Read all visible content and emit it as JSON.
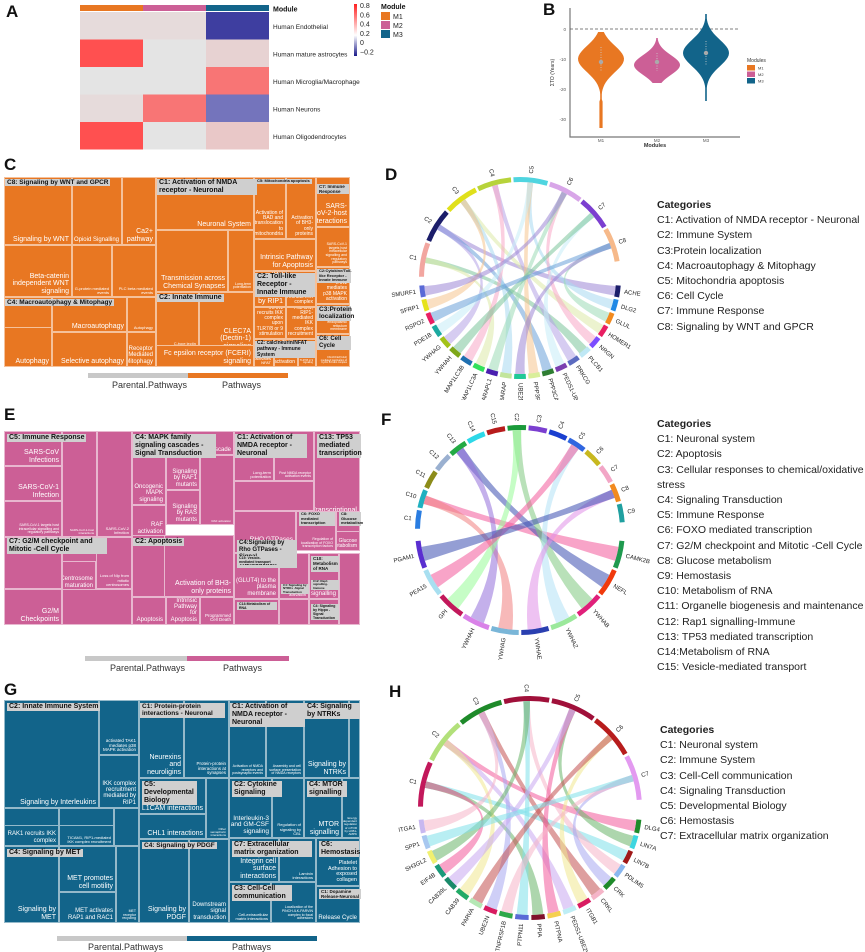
{
  "panels": {
    "A": {
      "label": "A"
    },
    "B": {
      "label": "B"
    },
    "C": {
      "label": "C"
    },
    "D": {
      "label": "D"
    },
    "E": {
      "label": "E"
    },
    "F": {
      "label": "F"
    },
    "G": {
      "label": "G"
    },
    "H": {
      "label": "H"
    }
  },
  "colors": {
    "M1": "#e87722",
    "M2": "#cc5f96",
    "M3": "#12648a",
    "parental": "#c8c8c8"
  },
  "chart_data": [
    {
      "panel": "A",
      "type": "heatmap",
      "columns": [
        "M1",
        "M2",
        "M3"
      ],
      "column_annotation_title": "Module",
      "rows": [
        "Human Endothelial",
        "Human mature astrocytes",
        "Human Microglia/Macrophage",
        "Human Neurons",
        "Human Oligodendrocytes"
      ],
      "values": [
        [
          0.05,
          0.05,
          -0.2
        ],
        [
          0.8,
          0.0,
          0.1
        ],
        [
          0.0,
          0.0,
          0.6
        ],
        [
          0.05,
          0.6,
          -0.1
        ],
        [
          0.8,
          0.0,
          0.15
        ]
      ],
      "colorbar": {
        "ticks": [
          "0.8",
          "0.6",
          "0.4",
          "0.2",
          "0",
          "−0.2"
        ],
        "range": [
          -0.2,
          0.8
        ]
      },
      "legend": {
        "title": "Module",
        "items": [
          "M1",
          "M2",
          "M3"
        ]
      }
    },
    {
      "panel": "B",
      "type": "violin",
      "xlabel": "Modules",
      "ylabel": "ΣΤΟ (Years)",
      "categories": [
        "M1",
        "M2",
        "M3"
      ],
      "yticks": [
        "0",
        "-10",
        "-20",
        "-30"
      ],
      "ylim": [
        -36,
        7
      ],
      "reference_line": 0,
      "series": [
        {
          "name": "M1",
          "median": -11,
          "q1": -14,
          "q3": -6,
          "min": -33,
          "max": -1,
          "mode": -10
        },
        {
          "name": "M2",
          "median": -11,
          "q1": -14,
          "q3": -8,
          "min": -18,
          "max": -3,
          "mode": -12
        },
        {
          "name": "M3",
          "median": -8,
          "q1": -12,
          "q3": -4,
          "min": -24,
          "max": 5,
          "mode": -8
        }
      ],
      "legend": {
        "title": "Modules",
        "items": [
          "M1",
          "M2",
          "M3"
        ],
        "position": "right"
      }
    },
    {
      "panel": "C",
      "type": "treemap",
      "color": "M1",
      "bar_labels": [
        "Parental.Pathways",
        "Pathways"
      ],
      "groups": [
        {
          "header": "C8: Signaling by WNT and GPCR",
          "leaves": [
            "Signaling by WNT",
            "Opioid Signalling",
            "Ca2+ pathway",
            "Beta-catenin independent WNT signaling",
            "G-protein mediated events",
            "PLC beta mediated events"
          ]
        },
        {
          "header": "C1: Activation of NMDA receptor - Neuronal",
          "leaves": [
            "Neuronal System",
            "Transmission across Chemical Synapses",
            "Long-term potentiation"
          ]
        },
        {
          "header": "C5: Mitochondria apoptosis",
          "leaves": [
            "Activation of BAD and translocation to mitochondria",
            "Activation of BH3-only proteins",
            "Intrinsic Pathway for Apoptosis"
          ]
        },
        {
          "header": "C7: Immune Response",
          "leaves": [
            "SARS-CoV-2-host interactions",
            "SARS-CoV-1 targets host intracellular signalling and regulatory pathways"
          ]
        },
        {
          "header": "C4: Macroautophagy & Mitophagy",
          "leaves": [
            "Macroautophagy",
            "PINK1-PRKN Mediated Mitophagy",
            "Autophagy",
            "Selective autophagy",
            "Receptor Mediated Mitophagy"
          ]
        },
        {
          "header": "C2: Innate Immune",
          "leaves": [
            "C-type lectin receptors (CLRs)",
            "CLEC7A (Dectin-1) signaling",
            "Fc epsilon receptor (FCERI) signaling"
          ]
        },
        {
          "header": "C2: Toll-like Receptor - Innate Immune",
          "leaves": [
            "IKK complex recruitment mediated by RIP1",
            "IRAK1 recruits IKK complex",
            "IRAK1 recruits IKK complex upon TLR7/8 or 9 stimulation",
            "TICAM1, RIP1-mediated IKK complex recruitment"
          ]
        },
        {
          "header": "C2:Cytokine/Toll-like Receptor - Innate Immune",
          "leaves": [
            "TAK1 mediates p38 MAPK activation"
          ]
        },
        {
          "header": "C3:Protein localization",
          "leaves": [
            "tail-anchored proteins into the endoplasmic reticulum membrane"
          ]
        },
        {
          "header": "C2: calcineurin/NFAT pathway - Immune System",
          "leaves": [
            "Calcineurin activates NFAT",
            "(Dectin-1) induces NFAT activation",
            "TRAF6 mediated IRF7 activation in TLR7/8 or 9 signaling"
          ]
        },
        {
          "header": "C6: Cell Cycle",
          "leaves": [
            "Chk1/Chk2(Cds1) mediated inactivation of Cyclin B:Cdk1 complex"
          ]
        }
      ]
    },
    {
      "panel": "D",
      "type": "chord",
      "sectors_top": [
        "C1",
        "C2",
        "C3",
        "C4",
        "C5",
        "C6",
        "C7",
        "C8"
      ],
      "genes": [
        "ACHE",
        "DLG2",
        "GLUL",
        "HOMER1",
        "NRGN",
        "PLCB1",
        "PRKCG",
        "PEDS1-UBE2V1",
        "PPP3CA",
        "PPP3R1",
        "UBE2N",
        "GABARAP",
        "GABARAPL1",
        "MAP1LC3A",
        "MAP1LC3B",
        "YWHAH",
        "YWHAG",
        "PDE1B",
        "RSPO2",
        "SFRP1",
        "SMURF1"
      ],
      "legend": {
        "title": "Categories",
        "items": [
          "C1: Activation of NMDA receptor - Neuronal",
          "C2: Immune System",
          "C3:Protein localization",
          "C4: Macroautophagy & Mitophagy",
          "C5: Mitochondria apoptosis",
          "C6: Cell Cycle",
          "C7: Immune Response",
          "C8: Signaling by WNT and GPCR"
        ]
      }
    },
    {
      "panel": "E",
      "type": "treemap",
      "color": "M2",
      "bar_labels": [
        "Parental.Pathways",
        "Pathways"
      ],
      "groups": [
        {
          "header": "C5: Immune Response",
          "leaves": [
            "SARS-CoV Infections",
            "SARS-CoV-1 Infection",
            "SARS-CoV-1 targets host intracellular signalling and regulatory pathways",
            "SARS-CoV-1-host interactions",
            "SARS-CoV-2 Infection"
          ]
        },
        {
          "header": "C4: MAPK family signaling cascades -Signal Transduction",
          "leaves": [
            "MAPK cascade",
            "Oncogenic MAPK signaling",
            "Signaling by RAF1 mutants",
            "Signaling by RAS mutants",
            "RAF activation"
          ]
        },
        {
          "header": "C1: Activation of NMDA receptor - Neuronal",
          "leaves": [
            "Long-term potentiation",
            "Post NMDA receptor activation events"
          ]
        },
        {
          "header": "C13: TP53 mediated transcription",
          "leaves": [
            "Transcriptional Regulation by TP53"
          ]
        },
        {
          "header": "C7: G2/M checkpoint and Mitotic -Cell Cycle",
          "leaves": [
            "G2/M DNA damage checkpoint",
            "Centrosome maturation",
            "Loss of Nlp from mitotic centrosomes",
            "G2/M Checkpoints"
          ]
        },
        {
          "header": "C2: Apoptosis",
          "leaves": [
            "BAD and translocation to mitochondria",
            "Activation of BH3-only proteins",
            "Intrinsic Pathway for Apoptosis",
            "Programmed Cell Death",
            "Apoptosis"
          ]
        },
        {
          "header": "C4:Signaling by Rho GTPases -Signal Transduction",
          "leaves": [
            "RHO GTPases activate PKNs"
          ]
        },
        {
          "header": "C6: FOXO mediated transcription",
          "leaves": [
            "Regulation of localization of FOXO transcription factors"
          ]
        },
        {
          "header": "C8: Glucose metabolism",
          "leaves": [
            "Glucose metabolism",
            "Glycolysis"
          ]
        },
        {
          "header": "C15: Vesicle-mediated transport",
          "leaves": [
            "(GLUT4) to the plasma membrane"
          ]
        },
        {
          "header": "C10: Metabolism of RNA",
          "leaves": []
        },
        {
          "header": "C12: Rap1 signalling-Immune",
          "leaves": [
            "Rap1 signalling"
          ]
        },
        {
          "header": "C14:Metabolism of RNA",
          "leaves": []
        },
        {
          "header": "C4: Signaling by NTRKs -Signal Transduction",
          "leaves": [
            "HSF1 activation"
          ]
        },
        {
          "header": "C4: Signaling by Hippo -Signal Transduction",
          "leaves": []
        }
      ]
    },
    {
      "panel": "F",
      "type": "chord",
      "sectors_top": [
        "C1",
        "C10",
        "C11",
        "C12",
        "C13",
        "C14",
        "C15",
        "C2",
        "C3",
        "C4",
        "C5",
        "C6",
        "C7",
        "C8",
        "C9"
      ],
      "genes": [
        "CAMK2B",
        "NEFL",
        "YWHAB",
        "YWHAZ",
        "YWHAE",
        "YWHAG",
        "YWHAH",
        "GPI",
        "PEA15",
        "PGAM1"
      ],
      "legend": {
        "title": "Categories",
        "items": [
          "C1: Neuronal system",
          "C2: Apoptosis",
          "C3: Cellular responses to chemical/oxidative stress",
          "C4: Signaling  Transduction",
          "C5: Immune Response",
          "C6: FOXO mediated transcription",
          "C7: G2/M checkpoint and Mitotic -Cell Cycle",
          "C8: Glucose metabolism",
          "C9: Hemostasis",
          "C10: Metabolism of RNA",
          "C11: Organelle biogenesis and maintenance",
          "C12: Rap1 signalling-Immune",
          "C13: TP53 mediated transcription",
          "C14:Metabolism of RNA",
          "C15: Vesicle-mediated transport"
        ]
      }
    },
    {
      "panel": "G",
      "type": "treemap",
      "color": "M3",
      "bar_labels": [
        "Parental.Pathways",
        "Pathways"
      ],
      "groups": [
        {
          "header": "C2: Innate Immune System",
          "leaves": [
            "Signaling by Interleukins",
            "activated TAK1 mediates p38 MAPK activation",
            "IKK complex recruitment mediated by RIP1",
            "IRAK1 recruits IKK complex upon TLR7/8 or 9 stimulation",
            "JNK (c-Jun kinases) phosphorylation and activation mediated by activated human TAK1",
            "RAK1 recruits IKK complex",
            "TICAM1, RIP1-mediated IKK complex recruitment"
          ]
        },
        {
          "header": "C1: Protein-protein interactions - Neuronal",
          "leaves": [
            "Neurexins and neuroligins",
            "Protein-protein interactions at synapses"
          ]
        },
        {
          "header": "C1: Activation of NMDA receptor - Neuronal",
          "leaves": [
            "Activation of NMDA receptors and postsynaptic events",
            "Assembly and cell surface presentation of NMDA receptors"
          ]
        },
        {
          "header": "C4: Signaling by NTRKs",
          "leaves": [
            "Signaling by NTRKs",
            "Prolonged ERK activation events"
          ]
        },
        {
          "header": "C5: Developmental Biology",
          "leaves": [
            "L1CAM interactions",
            "CHL1 interactions",
            "Other semaphorin interactions"
          ]
        },
        {
          "header": "C2: Cytokine Signaling",
          "leaves": [
            "Interleukin-3 and GM-CSF signaling",
            "Regulation of signaling by CBL"
          ]
        },
        {
          "header": "C4: MTOR signalling",
          "leaves": [
            "MTOR signalling",
            "Energy dependent regulation of mTOR by LKB1-AMPK"
          ]
        },
        {
          "header": "C4: Signaling by MET",
          "leaves": [
            "Signaling by MET",
            "MET promotes cell motility",
            "MET activates RAP1 and RAC1",
            "MET receptor recycling"
          ]
        },
        {
          "header": "C4: Signaling by PDGF",
          "leaves": [
            "Signaling by PDGF",
            "Downstream signal transduction"
          ]
        },
        {
          "header": "C7: Extracellular matrix organization",
          "leaves": [
            "Integrin cell surface interactions",
            "Laminin interactions"
          ]
        },
        {
          "header": "C6: Hemostasis",
          "leaves": [
            "Platelet Adhesion to exposed collagen"
          ]
        },
        {
          "header": "C3: Cell-Cell communication",
          "leaves": [
            "Cell-extracellular matrix interactions",
            "Localization of the PINCH-ILK-PARVIN complex to focal adhesions"
          ]
        },
        {
          "header": "C1: Dopamine Release-Neuronal",
          "leaves": [
            "Release Cycle"
          ]
        }
      ]
    },
    {
      "panel": "H",
      "type": "chord",
      "sectors_top": [
        "C1",
        "C2",
        "C3",
        "C4",
        "C5",
        "C6",
        "C7"
      ],
      "genes": [
        "DLG4",
        "LIN7A",
        "LIN7B",
        "PDLIM5",
        "CRK",
        "CRKL",
        "ITGB1",
        "PEDS1-UBE2V1",
        "PITPNA",
        "PPIA",
        "PTPN11",
        "TNFRSF1B",
        "UBE2N",
        "PARVA",
        "CAB39",
        "CAB39L",
        "EIF4B",
        "SH3GL2",
        "SPP1",
        "ITGA1"
      ],
      "legend": {
        "title": "Categories",
        "items": [
          "C1: Neuronal system",
          "C2: Immune System",
          "C3: Cell-Cell communication",
          "C4: Signaling  Transduction",
          "C5: Developmental Biology",
          "C6: Hemostasis",
          "C7: Extracellular matrix organization"
        ]
      }
    }
  ]
}
